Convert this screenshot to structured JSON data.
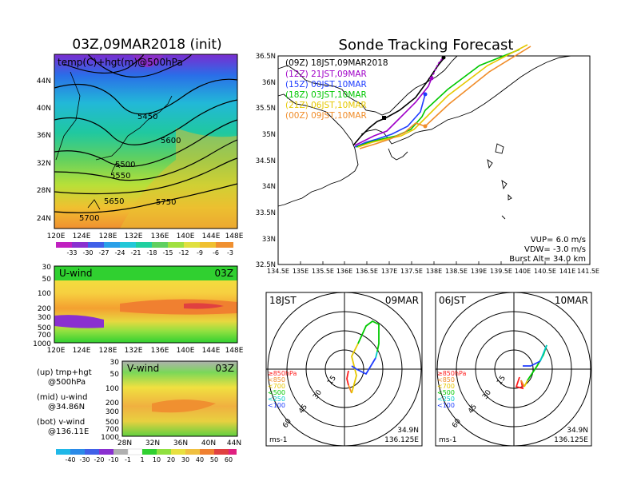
{
  "left_title": "03Z,09MAR2018 (init)",
  "right_title": "Sonde Tracking Forecast",
  "upper_panel": {
    "label": "temp(C)+hgt(m)@500hPa",
    "lat_labels": [
      "44N",
      "40N",
      "36N",
      "32N",
      "28N",
      "24N"
    ],
    "lon_labels": [
      "120E",
      "124E",
      "128E",
      "132E",
      "136E",
      "140E",
      "144E",
      "148E"
    ],
    "contour_labels": [
      "5450",
      "5600",
      "5500",
      "5550",
      "5650",
      "5750",
      "5700"
    ],
    "colorbar_labels": [
      "-33",
      "-30",
      "-27",
      "-24",
      "-21",
      "-18",
      "-15",
      "-12",
      "-9",
      "-6",
      "-3"
    ]
  },
  "uwind_panel": {
    "label": "U-wind",
    "time": "03Z",
    "p_labels": [
      "30",
      "50",
      "100",
      "200",
      "300",
      "500",
      "700",
      "1000"
    ],
    "lon_labels": [
      "120E",
      "124E",
      "128E",
      "132E",
      "136E",
      "140E",
      "144E",
      "148E"
    ]
  },
  "vwind_panel": {
    "label": "V-wind",
    "time": "03Z",
    "p_labels": [
      "30",
      "50",
      "100",
      "200",
      "300",
      "500",
      "700",
      "1000"
    ],
    "lat_labels": [
      "28N",
      "32N",
      "36N",
      "40N",
      "44N"
    ]
  },
  "legend_text": {
    "up": "(up) tmp+hgt",
    "up2": "@500hPa",
    "mid": "(mid) u-wind",
    "mid2": "@34.86N",
    "bot": "(bot) v-wind",
    "bot2": "@136.11E"
  },
  "wind_colorbar_labels": [
    "-40",
    "-30",
    "-20",
    "-10",
    "-1",
    "1",
    "10",
    "20",
    "30",
    "40",
    "50",
    "60"
  ],
  "map": {
    "lat_labels": [
      "36.5N",
      "36N",
      "35.5N",
      "35N",
      "34.5N",
      "34N",
      "33.5N",
      "33N",
      "32.5N"
    ],
    "lon_labels": [
      "134.5E",
      "135E",
      "135.5E",
      "136E",
      "136.5E",
      "137E",
      "137.5E",
      "138E",
      "138.5E",
      "139E",
      "139.5E",
      "140E",
      "140.5E",
      "141E",
      "141.5E"
    ],
    "legend": [
      {
        "text": "(09Z)  18JST,09MAR2018",
        "color": "#000000"
      },
      {
        "text": "(12Z)  21JST,09MAR",
        "color": "#a000c8"
      },
      {
        "text": "(15Z)  00JST,10MAR",
        "color": "#1e3cff"
      },
      {
        "text": "(18Z)  03JST,10MAR",
        "color": "#00c800"
      },
      {
        "text": "(21Z)  06JST,10MAR",
        "color": "#e6c800"
      },
      {
        "text": "(00Z)  09JST,10MAR",
        "color": "#f08c28"
      }
    ],
    "params": {
      "vup": "VUP=  6.0  m/s",
      "vdw": "VDW= -3.0  m/s",
      "burst": "Burst Alt=  34.0  km"
    }
  },
  "polar_left": {
    "time": "18JST",
    "date": "09MAR",
    "ring_labels": [
      "15",
      "30",
      "45",
      "60"
    ],
    "levels": [
      {
        "text": "≥850hPa",
        "color": "#ff2020"
      },
      {
        "text": "<850",
        "color": "#f08c28"
      },
      {
        "text": "<700",
        "color": "#e6c800"
      },
      {
        "text": "<500",
        "color": "#00c800"
      },
      {
        "text": "<250",
        "color": "#00c8c8"
      },
      {
        "text": "<100",
        "color": "#1e3cff"
      }
    ],
    "unit": "ms-1",
    "lat": "34.9N",
    "lon": "136.125E"
  },
  "polar_right": {
    "time": "06JST",
    "date": "10MAR",
    "ring_labels": [
      "15",
      "30",
      "45",
      "60"
    ],
    "levels": [
      {
        "text": "≥850hPa",
        "color": "#ff2020"
      },
      {
        "text": "<850",
        "color": "#f08c28"
      },
      {
        "text": "<700",
        "color": "#e6c800"
      },
      {
        "text": "<500",
        "color": "#00c800"
      },
      {
        "text": "<250",
        "color": "#00c8c8"
      },
      {
        "text": "<100",
        "color": "#1e3cff"
      }
    ],
    "unit": "ms-1",
    "lat": "34.9N",
    "lon": "136.125E"
  }
}
